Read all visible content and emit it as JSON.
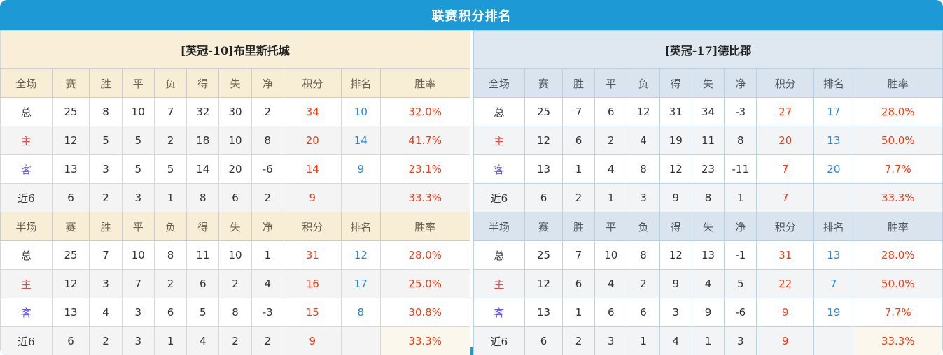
{
  "title": "联赛积分排名",
  "colors": {
    "accent_blue": "#1d9ad5",
    "left_header_bg": "#f9efd8",
    "right_header_bg": "#dae4ee",
    "points_red": "#f53b10",
    "rank_blue": "#2e86d2",
    "home_label_red": "#e44848",
    "away_label_blue": "#6a5ce8"
  },
  "teams": [
    {
      "header": "[英冠-10]布里斯托城",
      "sections": [
        {
          "scope": "全场",
          "columns": [
            "赛",
            "胜",
            "平",
            "负",
            "得",
            "失",
            "净",
            "积分",
            "排名",
            "胜率"
          ],
          "rows": [
            {
              "label": "总",
              "values": [
                "25",
                "8",
                "10",
                "7",
                "32",
                "30",
                "2"
              ],
              "points": "34",
              "rank": "10",
              "rate": "32.0%"
            },
            {
              "label": "主",
              "values": [
                "12",
                "5",
                "5",
                "2",
                "18",
                "10",
                "8"
              ],
              "points": "20",
              "rank": "14",
              "rate": "41.7%"
            },
            {
              "label": "客",
              "values": [
                "13",
                "3",
                "5",
                "5",
                "14",
                "20",
                "-6"
              ],
              "points": "14",
              "rank": "9",
              "rate": "23.1%"
            },
            {
              "label": "近6",
              "values": [
                "6",
                "2",
                "3",
                "1",
                "8",
                "6",
                "2"
              ],
              "points": "9",
              "rank": "",
              "rate": "33.3%"
            }
          ]
        },
        {
          "scope": "半场",
          "columns": [
            "赛",
            "胜",
            "平",
            "负",
            "得",
            "失",
            "净",
            "积分",
            "排名",
            "胜率"
          ],
          "rows": [
            {
              "label": "总",
              "values": [
                "25",
                "7",
                "10",
                "8",
                "11",
                "10",
                "1"
              ],
              "points": "31",
              "rank": "12",
              "rate": "28.0%"
            },
            {
              "label": "主",
              "values": [
                "12",
                "3",
                "7",
                "2",
                "6",
                "2",
                "4"
              ],
              "points": "16",
              "rank": "17",
              "rate": "25.0%"
            },
            {
              "label": "客",
              "values": [
                "13",
                "4",
                "3",
                "6",
                "5",
                "8",
                "-3"
              ],
              "points": "15",
              "rank": "8",
              "rate": "30.8%"
            },
            {
              "label": "近6",
              "values": [
                "6",
                "2",
                "3",
                "1",
                "4",
                "2",
                "2"
              ],
              "points": "9",
              "rank": "",
              "rate": "33.3%"
            }
          ]
        }
      ]
    },
    {
      "header": "[英冠-17]德比郡",
      "sections": [
        {
          "scope": "全场",
          "columns": [
            "赛",
            "胜",
            "平",
            "负",
            "得",
            "失",
            "净",
            "积分",
            "排名",
            "胜率"
          ],
          "rows": [
            {
              "label": "总",
              "values": [
                "25",
                "7",
                "6",
                "12",
                "31",
                "34",
                "-3"
              ],
              "points": "27",
              "rank": "17",
              "rate": "28.0%"
            },
            {
              "label": "主",
              "values": [
                "12",
                "6",
                "2",
                "4",
                "19",
                "11",
                "8"
              ],
              "points": "20",
              "rank": "13",
              "rate": "50.0%"
            },
            {
              "label": "客",
              "values": [
                "13",
                "1",
                "4",
                "8",
                "12",
                "23",
                "-11"
              ],
              "points": "7",
              "rank": "20",
              "rate": "7.7%"
            },
            {
              "label": "近6",
              "values": [
                "6",
                "2",
                "1",
                "3",
                "9",
                "8",
                "1"
              ],
              "points": "7",
              "rank": "",
              "rate": "33.3%"
            }
          ]
        },
        {
          "scope": "半场",
          "columns": [
            "赛",
            "胜",
            "平",
            "负",
            "得",
            "失",
            "净",
            "积分",
            "排名",
            "胜率"
          ],
          "rows": [
            {
              "label": "总",
              "values": [
                "25",
                "7",
                "10",
                "8",
                "12",
                "13",
                "-1"
              ],
              "points": "31",
              "rank": "13",
              "rate": "28.0%"
            },
            {
              "label": "主",
              "values": [
                "12",
                "6",
                "4",
                "2",
                "9",
                "4",
                "5"
              ],
              "points": "22",
              "rank": "7",
              "rate": "50.0%"
            },
            {
              "label": "客",
              "values": [
                "13",
                "1",
                "6",
                "6",
                "3",
                "9",
                "-6"
              ],
              "points": "9",
              "rank": "19",
              "rate": "7.7%"
            },
            {
              "label": "近6",
              "values": [
                "6",
                "2",
                "3",
                "1",
                "4",
                "1",
                "3"
              ],
              "points": "9",
              "rank": "",
              "rate": "33.3%"
            }
          ]
        }
      ]
    }
  ]
}
